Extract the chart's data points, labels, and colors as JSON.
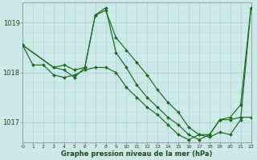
{
  "background_color": "#cce8e8",
  "line_color": "#1a6b1a",
  "xlim": [
    0,
    22
  ],
  "ylim": [
    1016.6,
    1019.4
  ],
  "yticks": [
    1017,
    1018,
    1019
  ],
  "xticks": [
    0,
    1,
    2,
    3,
    4,
    5,
    6,
    7,
    8,
    9,
    10,
    11,
    12,
    13,
    14,
    15,
    16,
    17,
    18,
    19,
    20,
    21,
    22
  ],
  "xlabel": "Graphe pression niveau de la mer (hPa)",
  "series": [
    {
      "x": [
        0,
        1,
        2,
        3,
        4,
        5,
        6,
        7,
        8,
        9,
        10,
        11,
        12,
        13,
        14,
        15,
        16,
        17,
        18,
        19,
        20,
        21,
        22
      ],
      "y": [
        1018.55,
        1018.15,
        1018.15,
        1017.95,
        1017.9,
        1017.95,
        1018.05,
        1018.1,
        1018.1,
        1018.0,
        1017.7,
        1017.5,
        1017.3,
        1017.15,
        1016.95,
        1016.75,
        1016.65,
        1016.75,
        1016.75,
        1017.05,
        1017.05,
        1017.1,
        1017.1
      ]
    },
    {
      "x": [
        0,
        3,
        4,
        5,
        6,
        7,
        8,
        9,
        10,
        11,
        12,
        13,
        14,
        15,
        16,
        17,
        18,
        19,
        20,
        21,
        22
      ],
      "y": [
        1018.55,
        1018.1,
        1018.15,
        1018.05,
        1018.1,
        1019.15,
        1019.25,
        1018.7,
        1018.45,
        1018.2,
        1017.95,
        1017.65,
        1017.4,
        1017.2,
        1016.9,
        1016.75,
        1016.7,
        1016.8,
        1016.75,
        1017.05,
        1019.3
      ]
    },
    {
      "x": [
        0,
        3,
        4,
        5,
        6,
        7,
        8,
        9,
        10,
        11,
        12,
        13,
        14,
        15,
        16,
        17,
        18,
        19,
        20,
        21,
        22
      ],
      "y": [
        1018.55,
        1018.1,
        1018.05,
        1017.9,
        1018.1,
        1019.15,
        1019.3,
        1018.4,
        1018.1,
        1017.75,
        1017.5,
        1017.3,
        1017.1,
        1016.95,
        1016.75,
        1016.65,
        1016.75,
        1017.05,
        1017.1,
        1017.35,
        1019.3
      ]
    }
  ]
}
